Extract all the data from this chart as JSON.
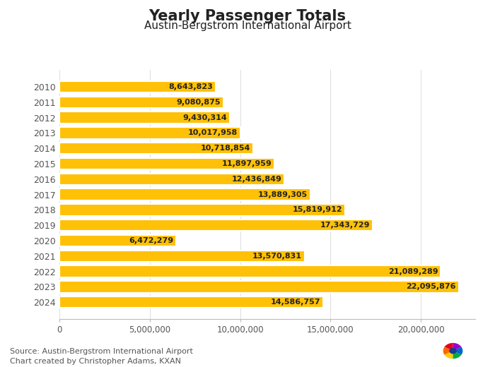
{
  "title": "Yearly Passenger Totals",
  "subtitle": "Austin-Bergstrom International Airport",
  "years": [
    "2010",
    "2011",
    "2012",
    "2013",
    "2014",
    "2015",
    "2016",
    "2017",
    "2018",
    "2019",
    "2020",
    "2021",
    "2022",
    "2023",
    "2024"
  ],
  "values": [
    8643823,
    9080875,
    9430314,
    10017958,
    10718854,
    11897959,
    12436849,
    13889305,
    15819912,
    17343729,
    6472279,
    13570831,
    21089289,
    22095876,
    14586757
  ],
  "bar_color": "#FFC107",
  "bar_edge_color": "#ffffff",
  "text_color": "#222222",
  "label_color": "#555555",
  "background_color": "#ffffff",
  "xlim": [
    0,
    23000000
  ],
  "xticks": [
    0,
    5000000,
    10000000,
    15000000,
    20000000
  ],
  "xtick_labels": [
    "0",
    "5,000,000",
    "10,000,000",
    "15,000,000",
    "20,000,000"
  ],
  "source_line1": "Source: Austin-Bergstrom International Airport",
  "source_line2": "Chart created by Christopher Adams, KXAN",
  "title_fontsize": 15,
  "subtitle_fontsize": 11,
  "year_label_fontsize": 9,
  "bar_label_fontsize": 8,
  "source_fontsize": 8,
  "xtick_fontsize": 8.5,
  "kxan_box_color": "#1a3a8c",
  "kxan_text_color": "#ffffff",
  "kxan_dot_color": "#cc3300"
}
